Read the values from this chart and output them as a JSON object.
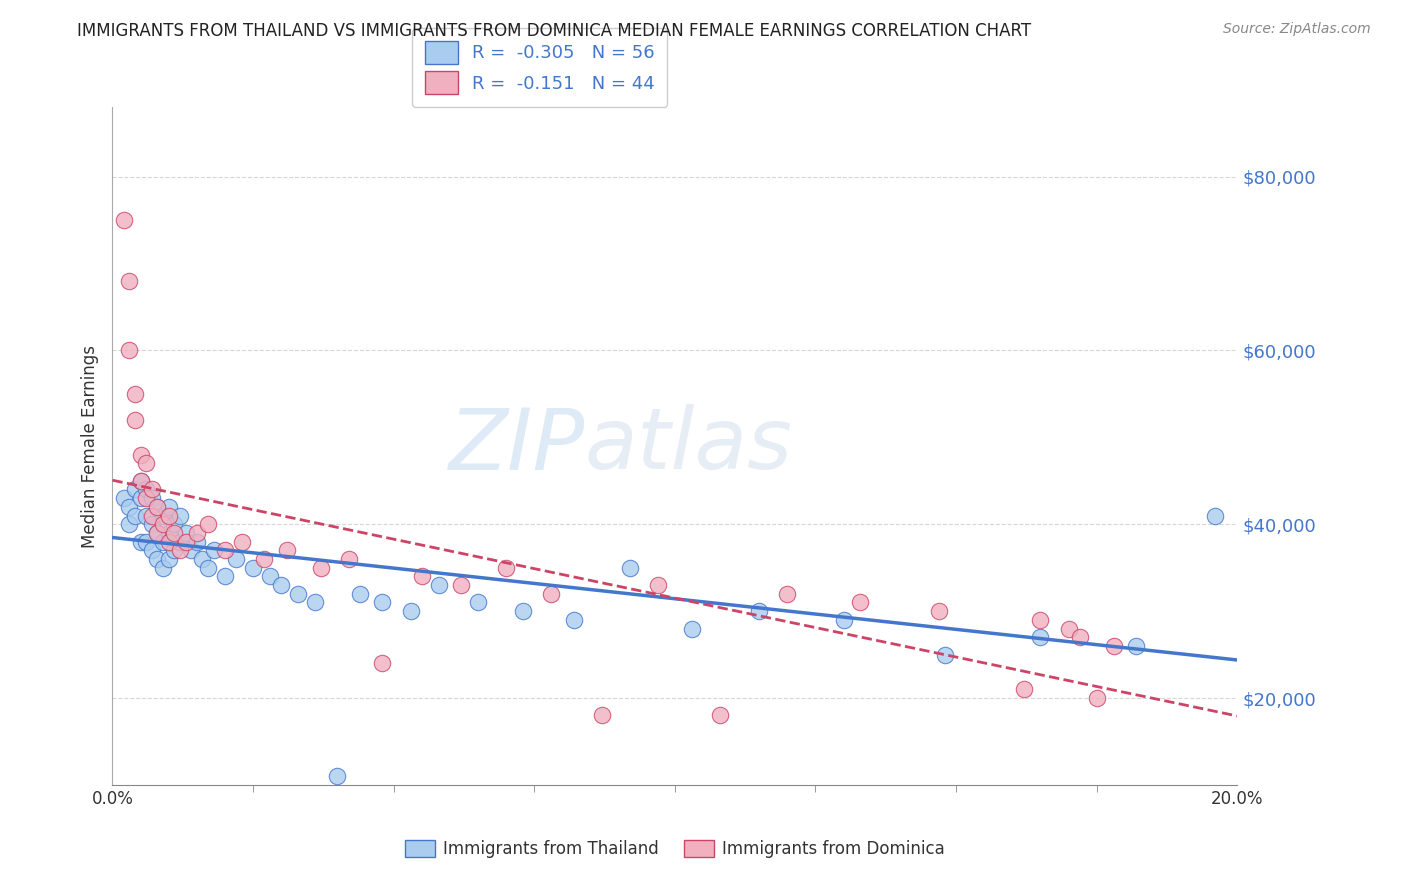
{
  "title": "IMMIGRANTS FROM THAILAND VS IMMIGRANTS FROM DOMINICA MEDIAN FEMALE EARNINGS CORRELATION CHART",
  "source": "Source: ZipAtlas.com",
  "ylabel": "Median Female Earnings",
  "xlabel": "",
  "xlim": [
    0.0,
    0.2
  ],
  "ylim": [
    10000,
    88000
  ],
  "yticks": [
    20000,
    40000,
    60000,
    80000
  ],
  "ytick_labels": [
    "$20,000",
    "$40,000",
    "$60,000",
    "$80,000"
  ],
  "xticks_major": [
    0.0,
    0.2
  ],
  "xtick_major_labels": [
    "0.0%",
    "20.0%"
  ],
  "xticks_minor": [
    0.025,
    0.05,
    0.075,
    0.1,
    0.125,
    0.15,
    0.175
  ],
  "color_thailand": "#aaccee",
  "color_dominica": "#f0b0c0",
  "line_color_thailand": "#4477cc",
  "line_color_dominica": "#cc4466",
  "R_thailand": -0.305,
  "N_thailand": 56,
  "R_dominica": -0.151,
  "N_dominica": 44,
  "watermark_zip": "ZIP",
  "watermark_atlas": "atlas",
  "legend_label_thailand": "Immigrants from Thailand",
  "legend_label_dominica": "Immigrants from Dominica",
  "thailand_x": [
    0.002,
    0.003,
    0.003,
    0.004,
    0.004,
    0.005,
    0.005,
    0.005,
    0.006,
    0.006,
    0.006,
    0.007,
    0.007,
    0.007,
    0.008,
    0.008,
    0.008,
    0.009,
    0.009,
    0.009,
    0.01,
    0.01,
    0.01,
    0.011,
    0.011,
    0.012,
    0.012,
    0.013,
    0.014,
    0.015,
    0.016,
    0.017,
    0.018,
    0.02,
    0.022,
    0.025,
    0.028,
    0.03,
    0.033,
    0.036,
    0.04,
    0.044,
    0.048,
    0.053,
    0.058,
    0.065,
    0.073,
    0.082,
    0.092,
    0.103,
    0.115,
    0.13,
    0.148,
    0.165,
    0.182,
    0.196
  ],
  "thailand_y": [
    43000,
    42000,
    40000,
    44000,
    41000,
    45000,
    43000,
    38000,
    44000,
    41000,
    38000,
    43000,
    40000,
    37000,
    42000,
    39000,
    36000,
    41000,
    38000,
    35000,
    42000,
    39000,
    36000,
    40000,
    37000,
    41000,
    38000,
    39000,
    37000,
    38000,
    36000,
    35000,
    37000,
    34000,
    36000,
    35000,
    34000,
    33000,
    32000,
    31000,
    11000,
    32000,
    31000,
    30000,
    33000,
    31000,
    30000,
    29000,
    35000,
    28000,
    30000,
    29000,
    25000,
    27000,
    26000,
    41000
  ],
  "dominica_x": [
    0.002,
    0.003,
    0.003,
    0.004,
    0.004,
    0.005,
    0.005,
    0.006,
    0.006,
    0.007,
    0.007,
    0.008,
    0.008,
    0.009,
    0.01,
    0.01,
    0.011,
    0.012,
    0.013,
    0.015,
    0.017,
    0.02,
    0.023,
    0.027,
    0.031,
    0.037,
    0.042,
    0.048,
    0.055,
    0.062,
    0.07,
    0.078,
    0.087,
    0.097,
    0.108,
    0.12,
    0.133,
    0.147,
    0.162,
    0.165,
    0.17,
    0.172,
    0.175,
    0.178
  ],
  "dominica_y": [
    75000,
    68000,
    60000,
    55000,
    52000,
    48000,
    45000,
    47000,
    43000,
    44000,
    41000,
    42000,
    39000,
    40000,
    41000,
    38000,
    39000,
    37000,
    38000,
    39000,
    40000,
    37000,
    38000,
    36000,
    37000,
    35000,
    36000,
    24000,
    34000,
    33000,
    35000,
    32000,
    18000,
    33000,
    18000,
    32000,
    31000,
    30000,
    21000,
    29000,
    28000,
    27000,
    20000,
    26000
  ]
}
